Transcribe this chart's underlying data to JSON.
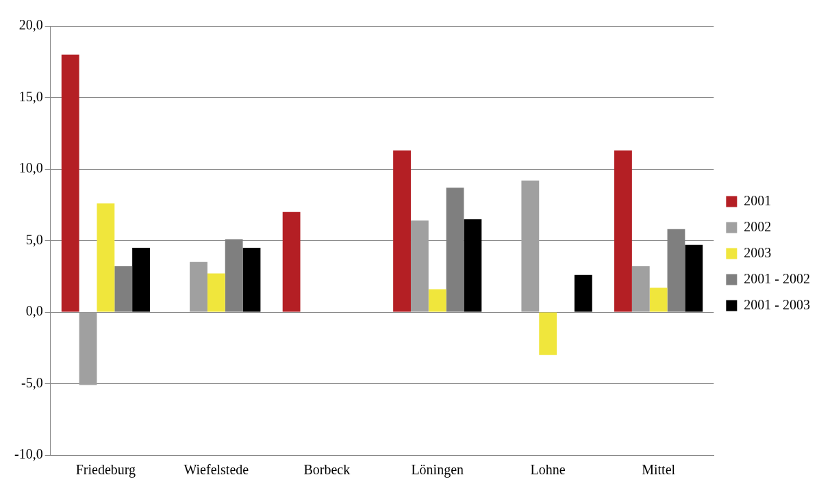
{
  "chart_data": {
    "type": "bar",
    "categories": [
      "Friedeburg",
      "Wiefelstede",
      "Borbeck",
      "Löningen",
      "Lohne",
      "Mittel"
    ],
    "series": [
      {
        "name": "2001",
        "color": "#b41f24",
        "values": [
          18.0,
          null,
          7.0,
          11.3,
          null,
          11.3
        ]
      },
      {
        "name": "2002",
        "color": "#a0a0a0",
        "values": [
          -5.1,
          3.5,
          null,
          6.4,
          9.2,
          3.2
        ]
      },
      {
        "name": "2003",
        "color": "#f0e63c",
        "values": [
          7.6,
          2.7,
          null,
          1.6,
          -3.0,
          1.7
        ]
      },
      {
        "name": "2001 - 2002",
        "color": "#7f7f7f",
        "values": [
          3.2,
          5.1,
          null,
          8.7,
          null,
          5.8
        ]
      },
      {
        "name": "2001 - 2003",
        "color": "#000000",
        "values": [
          4.5,
          4.5,
          null,
          6.5,
          2.6,
          4.7
        ]
      }
    ],
    "ylim": [
      -10,
      20
    ],
    "yticks": [
      {
        "value": -10,
        "label": "-10,0"
      },
      {
        "value": -5,
        "label": "-5,0"
      },
      {
        "value": 0,
        "label": "0,0"
      },
      {
        "value": 5,
        "label": "5,0"
      },
      {
        "value": 10,
        "label": "10,0"
      },
      {
        "value": 15,
        "label": "15,0"
      },
      {
        "value": 20,
        "label": "20,0"
      }
    ],
    "grid": "y",
    "legend": "right"
  }
}
